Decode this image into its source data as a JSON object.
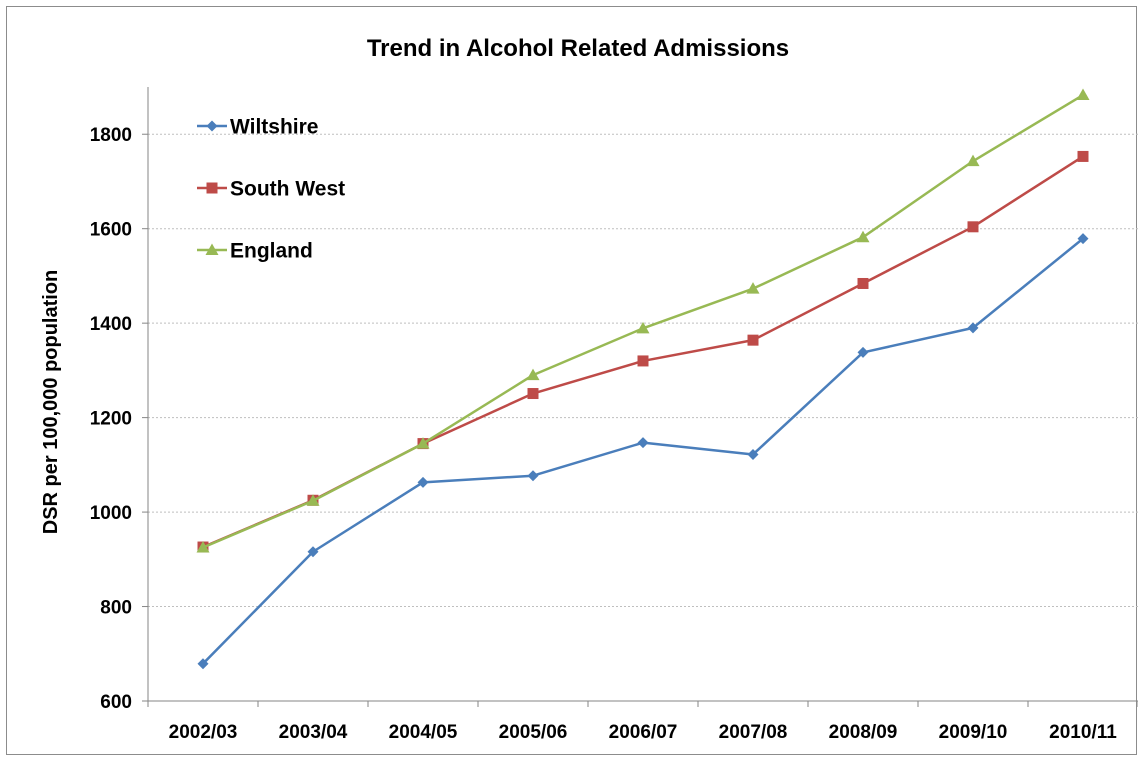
{
  "chart_data": {
    "type": "line",
    "title": "Trend in Alcohol Related Admissions",
    "xlabel": "",
    "ylabel": "DSR per 100,000 population",
    "categories": [
      "2002/03",
      "2003/04",
      "2004/05",
      "2005/06",
      "2006/07",
      "2007/08",
      "2008/09",
      "2009/10",
      "2010/11"
    ],
    "ylim": [
      600,
      1900
    ],
    "yticks": [
      600,
      800,
      1000,
      1200,
      1400,
      1600,
      1800
    ],
    "grid": true,
    "legend_position": "top-left",
    "series": [
      {
        "name": "Wiltshire",
        "color": "#4a7ebb",
        "marker": "diamond",
        "values": [
          679,
          916,
          1063,
          1077,
          1147,
          1122,
          1338,
          1390,
          1579
        ]
      },
      {
        "name": "South West",
        "color": "#be4b48",
        "marker": "square",
        "values": [
          926,
          1025,
          1145,
          1251,
          1320,
          1364,
          1484,
          1604,
          1753
        ]
      },
      {
        "name": "England",
        "color": "#98b954",
        "marker": "triangle",
        "values": [
          925,
          1024,
          1145,
          1290,
          1389,
          1473,
          1582,
          1743,
          1883
        ]
      }
    ]
  }
}
